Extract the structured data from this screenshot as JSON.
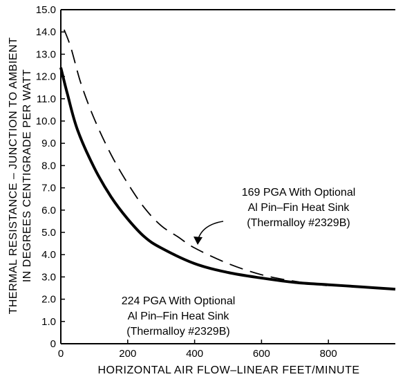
{
  "chart_data": {
    "type": "line",
    "title": "",
    "xlabel": "HORIZONTAL AIR FLOW–LINEAR FEET/MINUTE",
    "ylabel_line1": "THERMAL RESISTANCE – JUNCTION TO AMBIENT",
    "ylabel_line2": "IN DEGREES CENTIGRADE PER WATT",
    "xlim": [
      0,
      1000
    ],
    "ylim": [
      0,
      15
    ],
    "grid": false,
    "x_ticks": [
      {
        "value": 0,
        "label": "0"
      },
      {
        "value": 200,
        "label": "200"
      },
      {
        "value": 400,
        "label": "400"
      },
      {
        "value": 600,
        "label": "600"
      },
      {
        "value": 800,
        "label": "800"
      }
    ],
    "y_ticks": [
      {
        "value": 0,
        "label": "0"
      },
      {
        "value": 1,
        "label": "1.0"
      },
      {
        "value": 2,
        "label": "2.0"
      },
      {
        "value": 3,
        "label": "3.0"
      },
      {
        "value": 4,
        "label": "4.0"
      },
      {
        "value": 5,
        "label": "5.0"
      },
      {
        "value": 6,
        "label": "6.0"
      },
      {
        "value": 7,
        "label": "7.0"
      },
      {
        "value": 8,
        "label": "8.0"
      },
      {
        "value": 9,
        "label": "9.0"
      },
      {
        "value": 10,
        "label": "10.0"
      },
      {
        "value": 11,
        "label": "11.0"
      },
      {
        "value": 12,
        "label": "12.0"
      },
      {
        "value": 13,
        "label": "13.0"
      },
      {
        "value": 14,
        "label": "14.0"
      },
      {
        "value": 15,
        "label": "15.0"
      }
    ],
    "series": [
      {
        "label_lines": [
          "224 PGA With Optional",
          "Al Pin–Fin Heat Sink",
          "(Thermalloy #2329B)"
        ],
        "style": "solid",
        "x": [
          0,
          20,
          50,
          100,
          150,
          200,
          250,
          300,
          400,
          500,
          600,
          700,
          800,
          900,
          1000
        ],
        "y": [
          12.4,
          11.2,
          9.6,
          7.9,
          6.6,
          5.6,
          4.8,
          4.3,
          3.6,
          3.2,
          2.95,
          2.75,
          2.65,
          2.55,
          2.45
        ]
      },
      {
        "label_lines": [
          "169 PGA With Optional",
          "Al Pin–Fin Heat Sink",
          "(Thermalloy #2329B)"
        ],
        "style": "dashed",
        "x": [
          10,
          30,
          60,
          100,
          150,
          200,
          250,
          300,
          350,
          400,
          500,
          600,
          700,
          800
        ],
        "y": [
          14.1,
          13.3,
          11.7,
          10.1,
          8.5,
          7.2,
          6.1,
          5.3,
          4.8,
          4.3,
          3.6,
          3.1,
          2.8,
          2.6
        ]
      }
    ]
  }
}
